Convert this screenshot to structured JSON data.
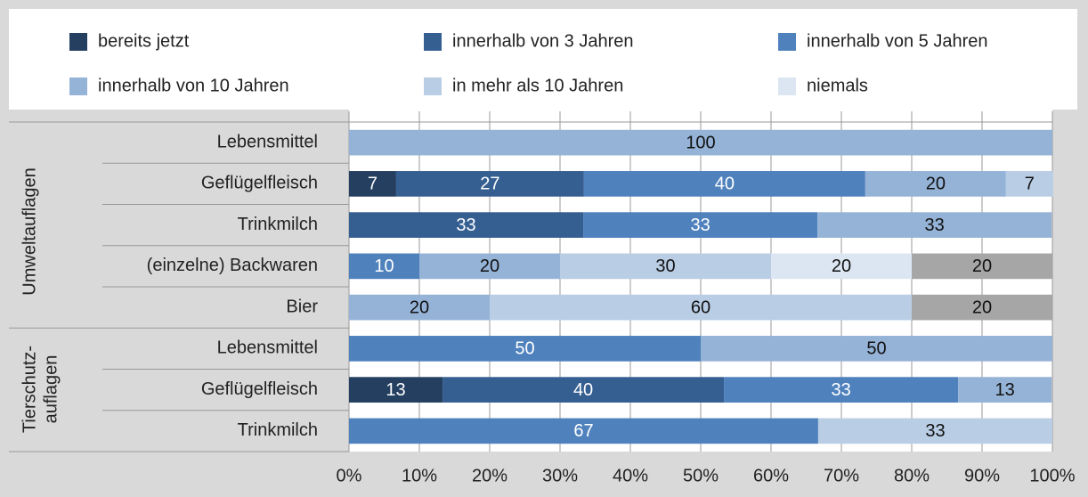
{
  "chart_data": {
    "type": "stacked-bar-horizontal",
    "groups": [
      "Umweltauflagen",
      "Tierschutz-",
      "auflagen"
    ],
    "categories": [
      "Lebensmittel",
      "Geflügelfleisch",
      "Trinkmilch",
      "(einzelne) Backwaren",
      "Bier",
      "Lebensmittel",
      "Geflügelfleisch",
      "Trinkmilch"
    ],
    "series": [
      {
        "name": "bereits jetzt",
        "color": "#243f60",
        "values": [
          null,
          6.7,
          null,
          null,
          null,
          null,
          13.3,
          null
        ],
        "value_labels": [
          null,
          "7",
          null,
          null,
          null,
          null,
          "13",
          null
        ]
      },
      {
        "name": "innerhalb von 3 Jahren",
        "color": "#365f91",
        "values": [
          null,
          26.7,
          33.3,
          null,
          null,
          null,
          40,
          null
        ],
        "value_labels": [
          null,
          "27",
          "33",
          null,
          null,
          null,
          "40",
          null
        ]
      },
      {
        "name": "innerhalb von 5 Jahren",
        "color": "#4f81bd",
        "values": [
          null,
          40,
          33.3,
          10,
          null,
          50,
          33.3,
          66.7
        ],
        "value_labels": [
          null,
          "40",
          "33",
          "10",
          null,
          "50",
          "33",
          "67"
        ]
      },
      {
        "name": "innerhalb von 10 Jahren",
        "color": "#95b3d7",
        "values": [
          100,
          20,
          33.3,
          20,
          20,
          50,
          13.3,
          null
        ],
        "value_labels": [
          "100",
          "20",
          "33",
          "20",
          "20",
          "50",
          "13",
          null
        ]
      },
      {
        "name": "in mehr als 10 Jahren",
        "color": "#b9cde5",
        "values": [
          null,
          6.7,
          null,
          30,
          60,
          null,
          null,
          33.3
        ],
        "value_labels": [
          null,
          "7",
          null,
          "30",
          "60",
          null,
          null,
          "33"
        ]
      },
      {
        "name": "niemals",
        "color": "#dce6f2",
        "values": [
          null,
          null,
          null,
          20,
          null,
          null,
          null,
          null
        ],
        "value_labels": [
          null,
          null,
          null,
          "20",
          null,
          null,
          null,
          null
        ]
      },
      {
        "color": "#a6a6a6",
        "values": [
          null,
          null,
          null,
          20,
          20,
          null,
          null,
          null
        ],
        "value_labels": [
          null,
          null,
          null,
          "20",
          "20",
          null,
          null,
          null
        ]
      }
    ],
    "xlim": [
      0,
      100
    ],
    "xticks": [
      {
        "value": 0,
        "label": "0%"
      },
      {
        "value": 10,
        "label": "10%"
      },
      {
        "value": 20,
        "label": "20%"
      },
      {
        "value": 30,
        "label": "30%"
      },
      {
        "value": 40,
        "label": "40%"
      },
      {
        "value": 50,
        "label": "50%"
      },
      {
        "value": 60,
        "label": "60%"
      },
      {
        "value": 70,
        "label": "70%"
      },
      {
        "value": 80,
        "label": "80%"
      },
      {
        "value": 90,
        "label": "90%"
      },
      {
        "value": 100,
        "label": "100%"
      }
    ],
    "grid": true
  }
}
